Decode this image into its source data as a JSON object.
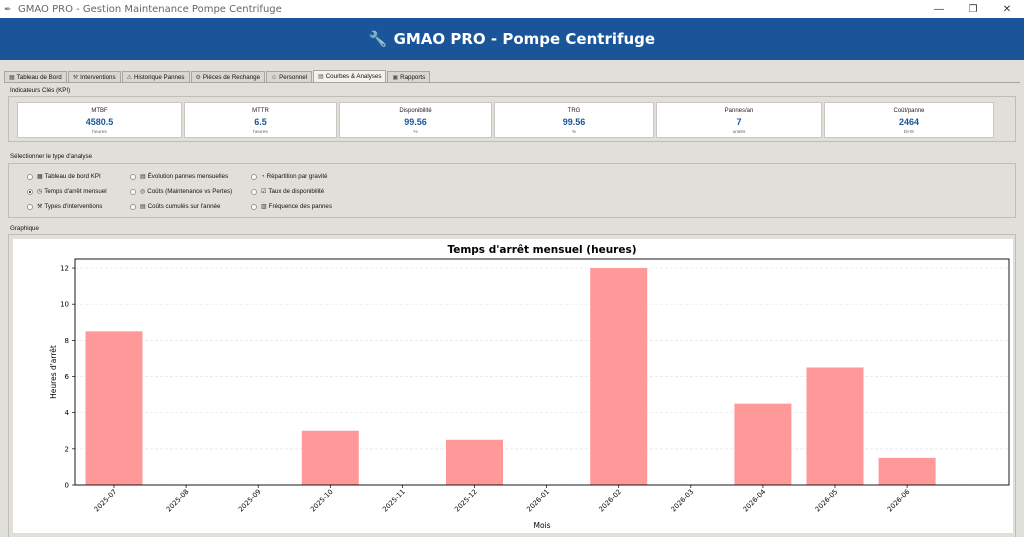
{
  "window": {
    "title": "GMAO PRO - Gestion Maintenance Pompe Centrifuge",
    "icon": "feather-icon",
    "buttons": [
      "minimize",
      "restore",
      "close"
    ]
  },
  "header": {
    "icon": "wrench-icon",
    "title": "GMAO PRO - Pompe Centrifuge",
    "bg_color": "#1a5599"
  },
  "tabs": [
    {
      "label": "Tableau de Bord",
      "icon": "dashboard-icon",
      "active": false
    },
    {
      "label": "Interventions",
      "icon": "wrench-icon",
      "active": false
    },
    {
      "label": "Historique Pannes",
      "icon": "warning-icon",
      "active": false
    },
    {
      "label": "Pièces de Rechange",
      "icon": "gear-icon",
      "active": false
    },
    {
      "label": "Personnel",
      "icon": "person-icon",
      "active": false
    },
    {
      "label": "Courbes & Analyses",
      "icon": "chart-icon",
      "active": true
    },
    {
      "label": "Rapports",
      "icon": "report-icon",
      "active": false
    }
  ],
  "kpi_section": {
    "label": "Indicateurs Clés (KPI)",
    "cards": [
      {
        "name": "MTBF",
        "value": "4580.5",
        "unit": "heures"
      },
      {
        "name": "MTTR",
        "value": "6.5",
        "unit": "heures"
      },
      {
        "name": "Disponibilité",
        "value": "99.56",
        "unit": "%"
      },
      {
        "name": "TRG",
        "value": "99.56",
        "unit": "%"
      },
      {
        "name": "Pannes/an",
        "value": "7",
        "unit": "unités"
      },
      {
        "name": "Coût/panne",
        "value": "2464",
        "unit": "DHS"
      }
    ]
  },
  "analysis_section": {
    "label": "Sélectionner le type d'analyse",
    "options": [
      {
        "label": "Tableau de bord KPI",
        "icon": "dashboard-icon",
        "selected": false
      },
      {
        "label": "Évolution pannes mensuelles",
        "icon": "chart-icon",
        "selected": false
      },
      {
        "label": "Répartition par gravité",
        "icon": "pie-icon",
        "selected": false
      },
      {
        "label": "Temps d'arrêt mensuel",
        "icon": "stopwatch-icon",
        "selected": true
      },
      {
        "label": "Coûts (Maintenance vs Pertes)",
        "icon": "money-icon",
        "selected": false
      },
      {
        "label": "Taux de disponibilité",
        "icon": "check-icon",
        "selected": false
      },
      {
        "label": "Types d'interventions",
        "icon": "wrench-icon",
        "selected": false
      },
      {
        "label": "Coûts cumulés sur l'année",
        "icon": "chart-icon",
        "selected": false
      },
      {
        "label": "Fréquence des pannes",
        "icon": "frequency-icon",
        "selected": false
      }
    ]
  },
  "graph_section": {
    "label": "Graphique"
  },
  "chart_data": {
    "type": "bar",
    "title": "Temps d'arrêt mensuel (heures)",
    "xlabel": "Mois",
    "ylabel": "Heures d'arrêt",
    "categories": [
      "2025-07",
      "2025-08",
      "2025-09",
      "2025-10",
      "2025-11",
      "2025-12",
      "2026-01",
      "2026-02",
      "2026-03",
      "2026-04",
      "2026-05",
      "2026-06"
    ],
    "values": [
      8.5,
      0,
      0,
      3.0,
      0,
      2.5,
      0,
      12.0,
      0,
      4.5,
      6.5,
      1.5
    ],
    "ylim": [
      0,
      12.5
    ],
    "yticks": [
      0,
      2,
      4,
      6,
      8,
      10,
      12
    ],
    "grid": true,
    "bar_color": "#ff9999"
  }
}
